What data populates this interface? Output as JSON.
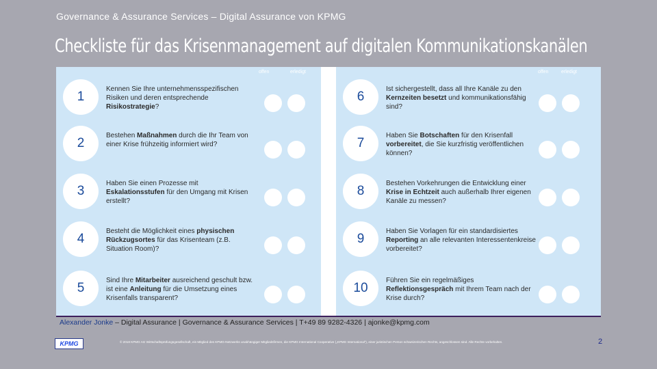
{
  "header": {
    "subtitle": "Governance & Assurance Services – Digital Assurance von KPMG",
    "title": "Checkliste für das Krisenmanagement auf digitalen Kommunikationskanälen"
  },
  "columns": {
    "open_label": "offen",
    "done_label": "erledigt"
  },
  "left_items": [
    {
      "num": "1",
      "parts": [
        {
          "t": "Kennen Sie Ihre unternehmensspezifischen Risiken und deren entsprechende ",
          "b": false
        },
        {
          "t": "Risikostrategie",
          "b": true
        },
        {
          "t": "?",
          "b": false
        }
      ]
    },
    {
      "num": "2",
      "parts": [
        {
          "t": "Bestehen ",
          "b": false
        },
        {
          "t": "Maßnahmen",
          "b": true
        },
        {
          "t": " durch die Ihr Team von einer Krise frühzeitig informiert wird?",
          "b": false
        }
      ]
    },
    {
      "num": "3",
      "parts": [
        {
          "t": "Haben Sie einen Prozesse mit ",
          "b": false
        },
        {
          "t": "Eskalationsstufen",
          "b": true
        },
        {
          "t": " für den Umgang mit Krisen erstellt?",
          "b": false
        }
      ]
    },
    {
      "num": "4",
      "parts": [
        {
          "t": "Besteht die Möglichkeit eines ",
          "b": false
        },
        {
          "t": "physischen Rückzugsortes",
          "b": true
        },
        {
          "t": " für das Krisenteam (z.B. Situation Room)?",
          "b": false
        }
      ]
    },
    {
      "num": "5",
      "parts": [
        {
          "t": "Sind Ihre ",
          "b": false
        },
        {
          "t": "Mitarbeiter",
          "b": true
        },
        {
          "t": " ausreichend geschult bzw. ist eine ",
          "b": false
        },
        {
          "t": "Anleitung",
          "b": true
        },
        {
          "t": " für die Umsetzung eines Krisenfalls transparent?",
          "b": false
        }
      ]
    }
  ],
  "right_items": [
    {
      "num": "6",
      "parts": [
        {
          "t": "Ist sichergestellt, dass all Ihre Kanäle zu den ",
          "b": false
        },
        {
          "t": "Kernzeiten besetzt",
          "b": true
        },
        {
          "t": " und kommunikationsfähig sind?",
          "b": false
        }
      ]
    },
    {
      "num": "7",
      "parts": [
        {
          "t": "Haben Sie ",
          "b": false
        },
        {
          "t": "Botschaften",
          "b": true
        },
        {
          "t": " für den Krisenfall ",
          "b": false
        },
        {
          "t": "vorbereitet",
          "b": true
        },
        {
          "t": ", die Sie kurzfristig veröffentlichen können?",
          "b": false
        }
      ]
    },
    {
      "num": "8",
      "parts": [
        {
          "t": "Bestehen Vorkehrungen die Entwicklung einer ",
          "b": false
        },
        {
          "t": "Krise in Echtzeit",
          "b": true
        },
        {
          "t": " auch außerhalb Ihrer eigenen Kanäle zu messen?",
          "b": false
        }
      ]
    },
    {
      "num": "9",
      "parts": [
        {
          "t": "Haben Sie Vorlagen für ein standardisiertes ",
          "b": false
        },
        {
          "t": "Reporting",
          "b": true
        },
        {
          "t": " an alle relevanten Interessentenkreise vorbereitet?",
          "b": false
        }
      ]
    },
    {
      "num": "10",
      "parts": [
        {
          "t": "Führen Sie ein regelmäßiges ",
          "b": false
        },
        {
          "t": "Reflektionsgespräch",
          "b": true
        },
        {
          "t": " mit Ihrem Team nach der Krise durch?",
          "b": false
        }
      ]
    }
  ],
  "footer": {
    "contact_name": "Alexander Jonke",
    "contact_rest": " – Digital Assurance | Governance & Assurance Services | T+49 89 9282-4326 | ajonke@kpmg.com",
    "logo": "KPMG",
    "legal": "© 2018 KPMG AG Wirtschaftsprüfungsgesellschaft, ein Mitglied des KPMG-Netzwerks unabhängiger Mitgliedsfirmen, die KPMG International Cooperative („KPMG International“), einer juristischen Person schweizerischen Rechts, angeschlossen sind. Alle Rechte vorbehalten.",
    "page_number": "2"
  },
  "colors": {
    "background": "#a7a7b0",
    "column_fill": "#cfe6f7",
    "number_color": "#1a4a9a",
    "divider": "#3d1f5c"
  }
}
